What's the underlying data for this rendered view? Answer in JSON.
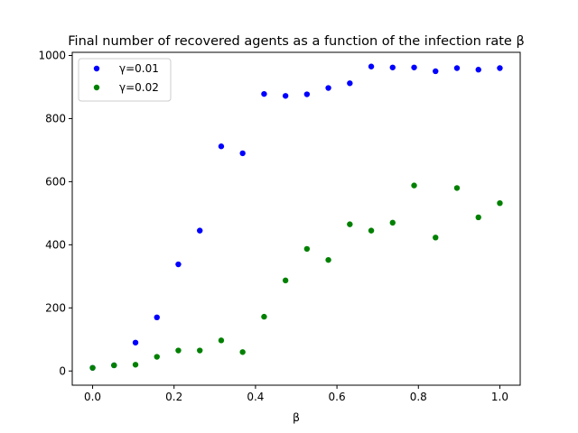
{
  "chart_data": {
    "type": "scatter",
    "title": "Final number of recovered agents as a function of the infection rate β",
    "xlabel": "β",
    "ylabel": "",
    "xlim": [
      -0.05,
      1.05
    ],
    "ylim": [
      -45,
      1010
    ],
    "xticks": [
      0.0,
      0.2,
      0.4,
      0.6,
      0.8,
      1.0
    ],
    "xtick_labels": [
      "0.0",
      "0.2",
      "0.4",
      "0.6",
      "0.8",
      "1.0"
    ],
    "yticks": [
      0,
      200,
      400,
      600,
      800,
      1000
    ],
    "ytick_labels": [
      "0",
      "200",
      "400",
      "600",
      "800",
      "1000"
    ],
    "grid": false,
    "legend_position": "top-left",
    "x": [
      0.0,
      0.0526,
      0.1053,
      0.1579,
      0.2105,
      0.2632,
      0.3158,
      0.3684,
      0.4211,
      0.4737,
      0.5263,
      0.5789,
      0.6316,
      0.6842,
      0.7368,
      0.7895,
      0.8421,
      0.8947,
      0.9474,
      1.0
    ],
    "series": [
      {
        "name": "γ=0.01",
        "color": "#0000ff",
        "values": [
          10,
          18,
          90,
          170,
          338,
          445,
          712,
          690,
          878,
          872,
          877,
          897,
          912,
          965,
          962,
          962,
          950,
          960,
          955,
          960
        ]
      },
      {
        "name": "γ=0.02",
        "color": "#008000",
        "values": [
          10,
          18,
          20,
          45,
          65,
          65,
          97,
          60,
          172,
          287,
          387,
          352,
          465,
          445,
          470,
          588,
          423,
          580,
          487,
          532
        ]
      }
    ]
  }
}
